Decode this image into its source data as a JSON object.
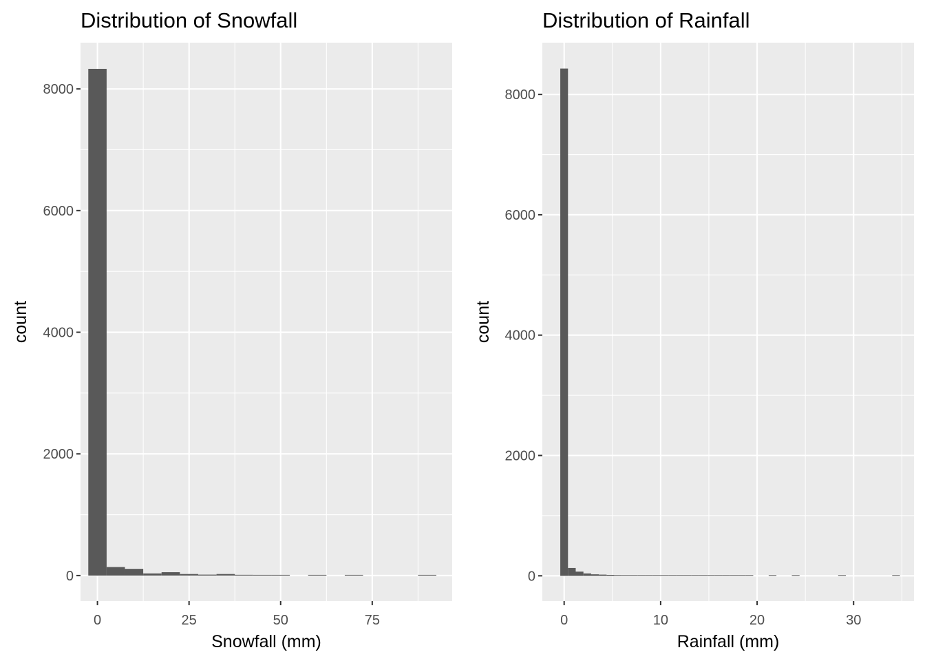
{
  "chart_data": [
    {
      "type": "bar",
      "title": "Distribution of Snowfall",
      "xlabel": "Snowfall (mm)",
      "ylabel": "count",
      "xlim": [
        -4.62,
        96.82
      ],
      "ylim": [
        -420,
        8760
      ],
      "x_ticks": [
        0,
        25,
        50,
        75
      ],
      "y_ticks": [
        0,
        2000,
        4000,
        6000,
        8000
      ],
      "grid": true,
      "bin_width": 5,
      "bins": [
        {
          "x": 0,
          "count": 8330
        },
        {
          "x": 5,
          "count": 140
        },
        {
          "x": 10,
          "count": 110
        },
        {
          "x": 15,
          "count": 35
        },
        {
          "x": 20,
          "count": 55
        },
        {
          "x": 25,
          "count": 25
        },
        {
          "x": 30,
          "count": 15
        },
        {
          "x": 35,
          "count": 25
        },
        {
          "x": 40,
          "count": 12
        },
        {
          "x": 45,
          "count": 8
        },
        {
          "x": 50,
          "count": 6
        },
        {
          "x": 55,
          "count": 0
        },
        {
          "x": 60,
          "count": 5
        },
        {
          "x": 65,
          "count": 0
        },
        {
          "x": 70,
          "count": 4
        },
        {
          "x": 75,
          "count": 0
        },
        {
          "x": 80,
          "count": 0
        },
        {
          "x": 85,
          "count": 0
        },
        {
          "x": 90,
          "count": 3
        }
      ],
      "bar_color": "#595959",
      "panel_background": "#ebebeb"
    },
    {
      "type": "bar",
      "title": "Distribution of Rainfall",
      "xlabel": "Rainfall (mm)",
      "ylabel": "count",
      "xlim": [
        -2.26,
        36.26
      ],
      "ylim": [
        -420,
        8860
      ],
      "x_ticks": [
        0,
        10,
        20,
        30
      ],
      "y_ticks": [
        0,
        2000,
        4000,
        6000,
        8000
      ],
      "grid": true,
      "bin_width": 0.8,
      "bins": [
        {
          "x": 0,
          "count": 8430
        },
        {
          "x": 0.8,
          "count": 130
        },
        {
          "x": 1.6,
          "count": 70
        },
        {
          "x": 2.4,
          "count": 40
        },
        {
          "x": 3.2,
          "count": 25
        },
        {
          "x": 4.0,
          "count": 20
        },
        {
          "x": 4.8,
          "count": 15
        },
        {
          "x": 5.6,
          "count": 12
        },
        {
          "x": 6.4,
          "count": 8
        },
        {
          "x": 7.2,
          "count": 6
        },
        {
          "x": 8.0,
          "count": 5
        },
        {
          "x": 8.8,
          "count": 5
        },
        {
          "x": 9.6,
          "count": 4
        },
        {
          "x": 10.4,
          "count": 4
        },
        {
          "x": 11.2,
          "count": 3
        },
        {
          "x": 12.0,
          "count": 3
        },
        {
          "x": 12.8,
          "count": 3
        },
        {
          "x": 13.6,
          "count": 3
        },
        {
          "x": 14.4,
          "count": 2
        },
        {
          "x": 15.2,
          "count": 2
        },
        {
          "x": 16.0,
          "count": 2
        },
        {
          "x": 16.8,
          "count": 2
        },
        {
          "x": 17.6,
          "count": 2
        },
        {
          "x": 18.4,
          "count": 2
        },
        {
          "x": 19.2,
          "count": 2
        },
        {
          "x": 21.6,
          "count": 2
        },
        {
          "x": 24.0,
          "count": 2
        },
        {
          "x": 28.8,
          "count": 2
        },
        {
          "x": 34.4,
          "count": 2
        }
      ],
      "bar_color": "#595959",
      "panel_background": "#ebebeb"
    }
  ]
}
